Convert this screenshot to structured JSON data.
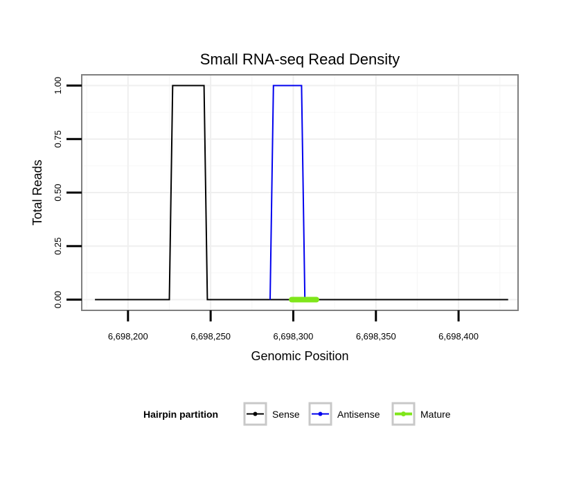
{
  "chart_data": {
    "type": "line",
    "title": "Small RNA-seq Read Density",
    "xlabel": "Genomic Position",
    "ylabel": "Total Reads",
    "xlim": [
      6698172,
      6698436
    ],
    "ylim": [
      -0.05,
      1.05
    ],
    "x_ticks": [
      6698200,
      6698250,
      6698300,
      6698350,
      6698400
    ],
    "x_tick_labels": [
      "6,698,200",
      "6,698,250",
      "6,698,300",
      "6,698,350",
      "6,698,400"
    ],
    "y_ticks": [
      0,
      0.25,
      0.5,
      0.75,
      1
    ],
    "y_tick_labels": [
      "0.00",
      "0.25",
      "0.50",
      "0.75",
      "1.00"
    ],
    "grid": true,
    "series": [
      {
        "name": "Sense",
        "color": "#000000",
        "x": [
          6698180,
          6698225,
          6698227,
          6698246,
          6698248,
          6698430
        ],
        "y": [
          0,
          0,
          1,
          1,
          0,
          0
        ]
      },
      {
        "name": "Antisense",
        "color": "#0000ee",
        "x": [
          6698286,
          6698288,
          6698305,
          6698307
        ],
        "y": [
          0,
          1,
          1,
          0
        ]
      },
      {
        "name": "Mature",
        "color": "#7fe61a",
        "x": [
          6698299,
          6698314
        ],
        "y": [
          0,
          0
        ]
      }
    ],
    "legend": {
      "title": "Hairpin partition",
      "position": "bottom",
      "entries": [
        "Sense",
        "Antisense",
        "Mature"
      ]
    }
  }
}
